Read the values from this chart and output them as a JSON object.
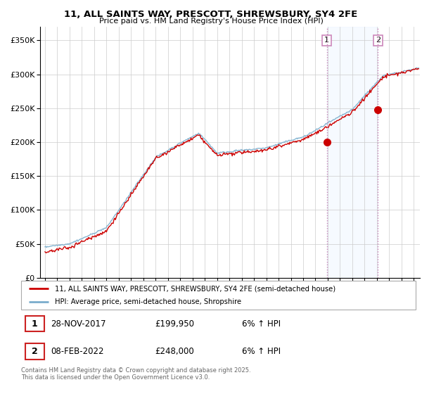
{
  "title": "11, ALL SAINTS WAY, PRESCOTT, SHREWSBURY, SY4 2FE",
  "subtitle": "Price paid vs. HM Land Registry's House Price Index (HPI)",
  "footer": "Contains HM Land Registry data © Crown copyright and database right 2025.\nThis data is licensed under the Open Government Licence v3.0.",
  "legend_line1": "11, ALL SAINTS WAY, PRESCOTT, SHREWSBURY, SY4 2FE (semi-detached house)",
  "legend_line2": "HPI: Average price, semi-detached house, Shropshire",
  "sale1_label": "1",
  "sale1_date": "28-NOV-2017",
  "sale1_price": "£199,950",
  "sale1_info": "6% ↑ HPI",
  "sale2_label": "2",
  "sale2_date": "08-FEB-2022",
  "sale2_price": "£248,000",
  "sale2_info": "6% ↑ HPI",
  "ylim": [
    0,
    370000
  ],
  "yticks": [
    0,
    50000,
    100000,
    150000,
    200000,
    250000,
    300000,
    350000
  ],
  "xlim_start": 1994.6,
  "xlim_end": 2025.5,
  "background_color": "#ffffff",
  "grid_color": "#cccccc",
  "red_color": "#cc0000",
  "blue_color": "#7aadcc",
  "vline_color": "#cc88bb",
  "vspan_color": "#ddeeff",
  "vline_x1": 2017.92,
  "vline_x2": 2022.08,
  "sale1_x": 2017.92,
  "sale1_y": 199950,
  "sale2_x": 2022.08,
  "sale2_y": 248000
}
